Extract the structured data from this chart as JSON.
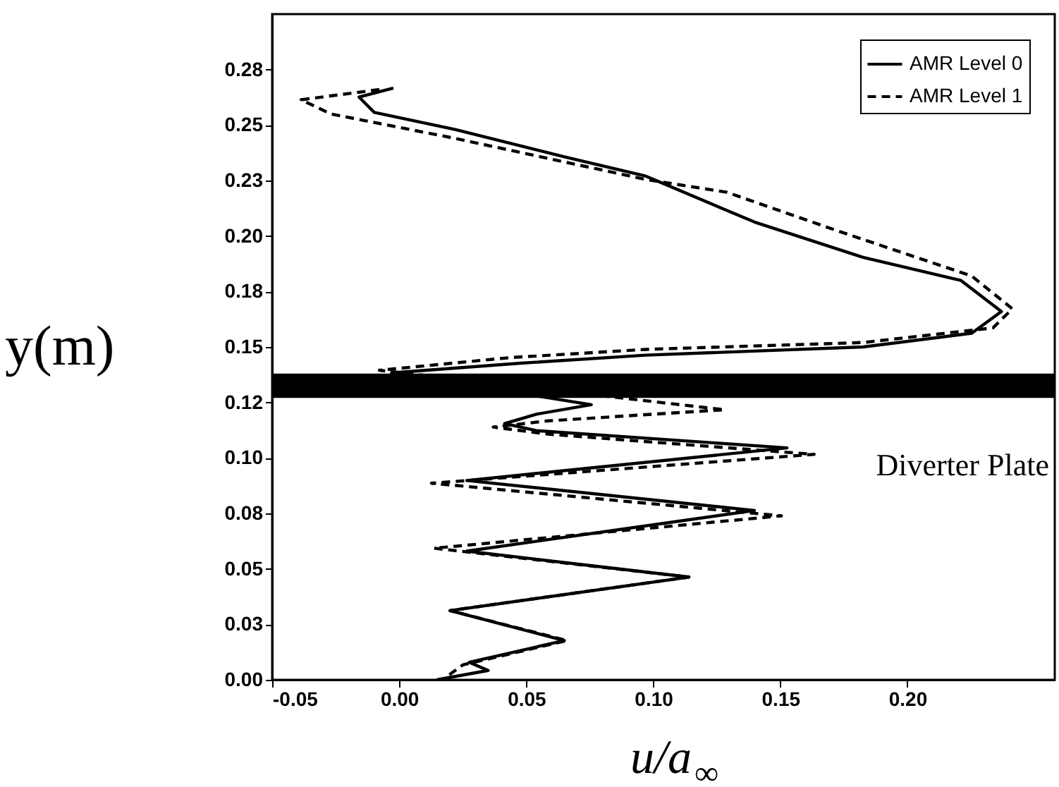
{
  "chart_data": {
    "type": "line",
    "xlabel": "u/a$_{∞}$",
    "ylabel": "y(m)",
    "xlim": [
      -0.05,
      0.258
    ],
    "ylim": [
      0,
      0.3
    ],
    "xticks": [
      {
        "value": -0.05,
        "label": "-0.05"
      },
      {
        "value": 0,
        "label": "0.00"
      },
      {
        "value": 0.05,
        "label": "0.05"
      },
      {
        "value": 0.1,
        "label": "0.10"
      },
      {
        "value": 0.15,
        "label": "0.15"
      },
      {
        "value": 0.2,
        "label": "0.20"
      }
    ],
    "yticks": [
      {
        "value": 0,
        "label": "0.00"
      },
      {
        "value": 0.025,
        "label": "0.03"
      },
      {
        "value": 0.05,
        "label": "0.05"
      },
      {
        "value": 0.075,
        "label": "0.08"
      },
      {
        "value": 0.1,
        "label": "0.10"
      },
      {
        "value": 0.125,
        "label": "0.12"
      },
      {
        "value": 0.15,
        "label": "0.15"
      },
      {
        "value": 0.175,
        "label": "0.18"
      },
      {
        "value": 0.2,
        "label": "0.20"
      },
      {
        "value": 0.225,
        "label": "0.23"
      },
      {
        "value": 0.25,
        "label": "0.25"
      },
      {
        "value": 0.275,
        "label": "0.28"
      }
    ],
    "grid": false,
    "legend": "top right",
    "marker": "none",
    "bands": [
      {
        "axis": "y",
        "from": 0.127,
        "to": 0.138,
        "label": "Diverter Plate",
        "color": "#000000"
      }
    ],
    "series": [
      {
        "name": "AMR Level 0",
        "color": "#000000",
        "line_style": "solid",
        "x": [
          -0.0023,
          -0.0158,
          -0.0098,
          0.022,
          0.065,
          0.097,
          0.1398,
          0.1825,
          0.221,
          0.237,
          0.2253,
          0.1825,
          0.097,
          0.0478,
          -0.003,
          0.0756,
          0.054,
          0.0415,
          0.054,
          0.1526,
          0.0266,
          0.1398,
          0.0266,
          0.114,
          0.02,
          0.065,
          0.0276,
          0.035,
          0.0148
        ],
        "values": [
          0.2667,
          0.2626,
          0.2557,
          0.248,
          0.2357,
          0.227,
          0.2063,
          0.1904,
          0.18,
          0.166,
          0.1562,
          0.15,
          0.1463,
          0.1427,
          0.1383,
          0.124,
          0.1197,
          0.1155,
          0.1123,
          0.1045,
          0.0898,
          0.0763,
          0.058,
          0.0463,
          0.0312,
          0.0177,
          0.0079,
          0.0042,
          0
        ]
      },
      {
        "name": "AMR Level 1",
        "color": "#000000",
        "line_style": "dashed",
        "x": [
          -0.0078,
          -0.0386,
          -0.0269,
          0.022,
          0.097,
          0.129,
          0.1718,
          0.2253,
          0.2413,
          0.2337,
          0.1825,
          0.097,
          0.0436,
          -0.0078,
          0.128,
          0.0586,
          0.037,
          0.0586,
          0.1633,
          0.0127,
          0.1504,
          0.0137,
          0.114,
          0.02,
          0.066,
          0.025,
          0.017
        ],
        "values": [
          0.266,
          0.2614,
          0.255,
          0.244,
          0.2255,
          0.2197,
          0.2026,
          0.182,
          0.1672,
          0.1586,
          0.152,
          0.1489,
          0.1452,
          0.1395,
          0.1217,
          0.1167,
          0.1139,
          0.1107,
          0.1016,
          0.0886,
          0.0739,
          0.0593,
          0.0463,
          0.0312,
          0.0177,
          0.0067,
          0
        ]
      }
    ]
  }
}
